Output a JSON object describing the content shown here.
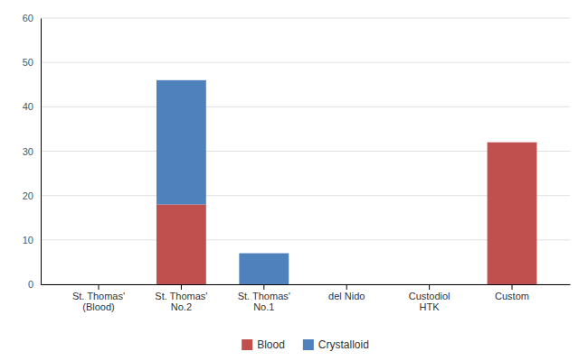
{
  "chart_data": {
    "type": "bar",
    "stacked": true,
    "categories": [
      "St. Thomas'\n(Blood)",
      "St. Thomas'\nNo.2",
      "St. Thomas'\nNo.1",
      "del Nido",
      "Custodiol\nHTK",
      "Custom"
    ],
    "series": [
      {
        "name": "Blood",
        "color": "#c0504d",
        "values": [
          0,
          18,
          0,
          0,
          0,
          32
        ]
      },
      {
        "name": "Crystalloid",
        "color": "#4f81bd",
        "values": [
          0,
          28,
          7,
          0,
          0,
          0
        ]
      }
    ],
    "ylim": [
      0,
      60
    ],
    "yticks": [
      0,
      10,
      20,
      30,
      40,
      50,
      60
    ],
    "grid": true,
    "legend": "bottom"
  }
}
